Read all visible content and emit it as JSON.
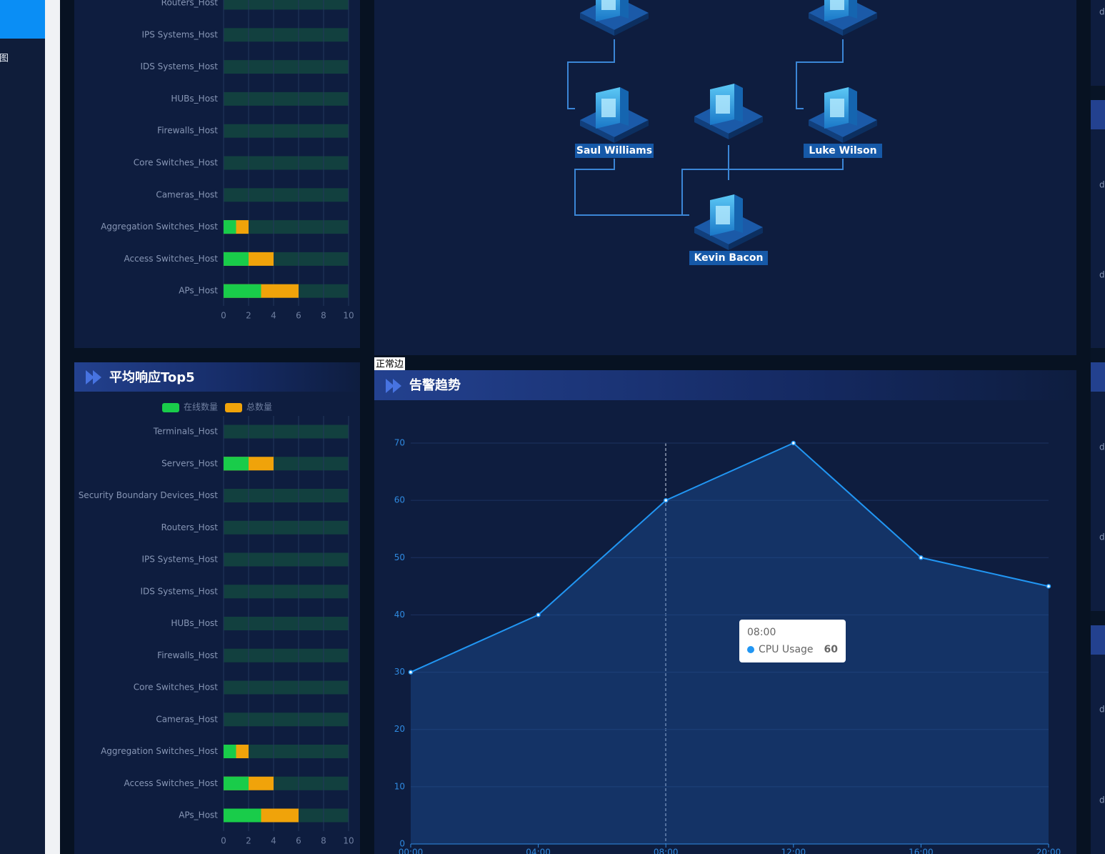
{
  "sidebar": {
    "item": "图"
  },
  "topology": {
    "nodes": [
      "Saul Williams",
      "Luke Wilson",
      "Kevin Bacon"
    ],
    "edge_label": "正常边"
  },
  "right_edge_labels": [
    "d",
    "d",
    "d",
    "d",
    "d",
    "d",
    "d"
  ],
  "chart_data": [
    {
      "type": "hbar",
      "categories": [
        "Routers_Host",
        "IPS Systems_Host",
        "IDS Systems_Host",
        "HUBs_Host",
        "Firewalls_Host",
        "Core Switches_Host",
        "Cameras_Host",
        "Aggregation Switches_Host",
        "Access Switches_Host",
        "APs_Host"
      ],
      "series": [
        {
          "color": "#19cc4a",
          "values": [
            0,
            0,
            0,
            0,
            0,
            0,
            0,
            1,
            2,
            3
          ]
        },
        {
          "color": "#f0a30a",
          "values": [
            0,
            0,
            0,
            0,
            0,
            0,
            0,
            2,
            4,
            6
          ]
        }
      ],
      "xlim": [
        0,
        10
      ],
      "xticks": [
        0,
        2,
        4,
        6,
        8,
        10
      ],
      "grid": true
    },
    {
      "type": "hbar",
      "title": "平均响应Top5",
      "categories": [
        "Terminals_Host",
        "Servers_Host",
        "Security Boundary Devices_Host",
        "Routers_Host",
        "IPS Systems_Host",
        "IDS Systems_Host",
        "HUBs_Host",
        "Firewalls_Host",
        "Core Switches_Host",
        "Cameras_Host",
        "Aggregation Switches_Host",
        "Access Switches_Host",
        "APs_Host"
      ],
      "series": [
        {
          "name": "在线数量",
          "color": "#19cc4a",
          "values": [
            0,
            2,
            0,
            0,
            0,
            0,
            0,
            0,
            0,
            0,
            1,
            2,
            3
          ]
        },
        {
          "name": "总数量",
          "color": "#f0a30a",
          "values": [
            0,
            4,
            0,
            0,
            0,
            0,
            0,
            0,
            0,
            0,
            2,
            4,
            6
          ]
        }
      ],
      "xlim": [
        0,
        10
      ],
      "xticks": [
        0,
        2,
        4,
        6,
        8,
        10
      ],
      "grid": true
    },
    {
      "type": "line",
      "title": "告警趋势",
      "categories": [
        "00:00",
        "04:00",
        "08:00",
        "12:00",
        "16:00",
        "20:00"
      ],
      "series": [
        {
          "name": "CPU Usage",
          "color": "#2196f3",
          "values": [
            30,
            40,
            60,
            70,
            50,
            45
          ]
        }
      ],
      "ylim": [
        0,
        70
      ],
      "yticks": [
        0,
        10,
        20,
        30,
        40,
        50,
        60,
        70
      ],
      "grid": true,
      "area": true
    }
  ]
}
